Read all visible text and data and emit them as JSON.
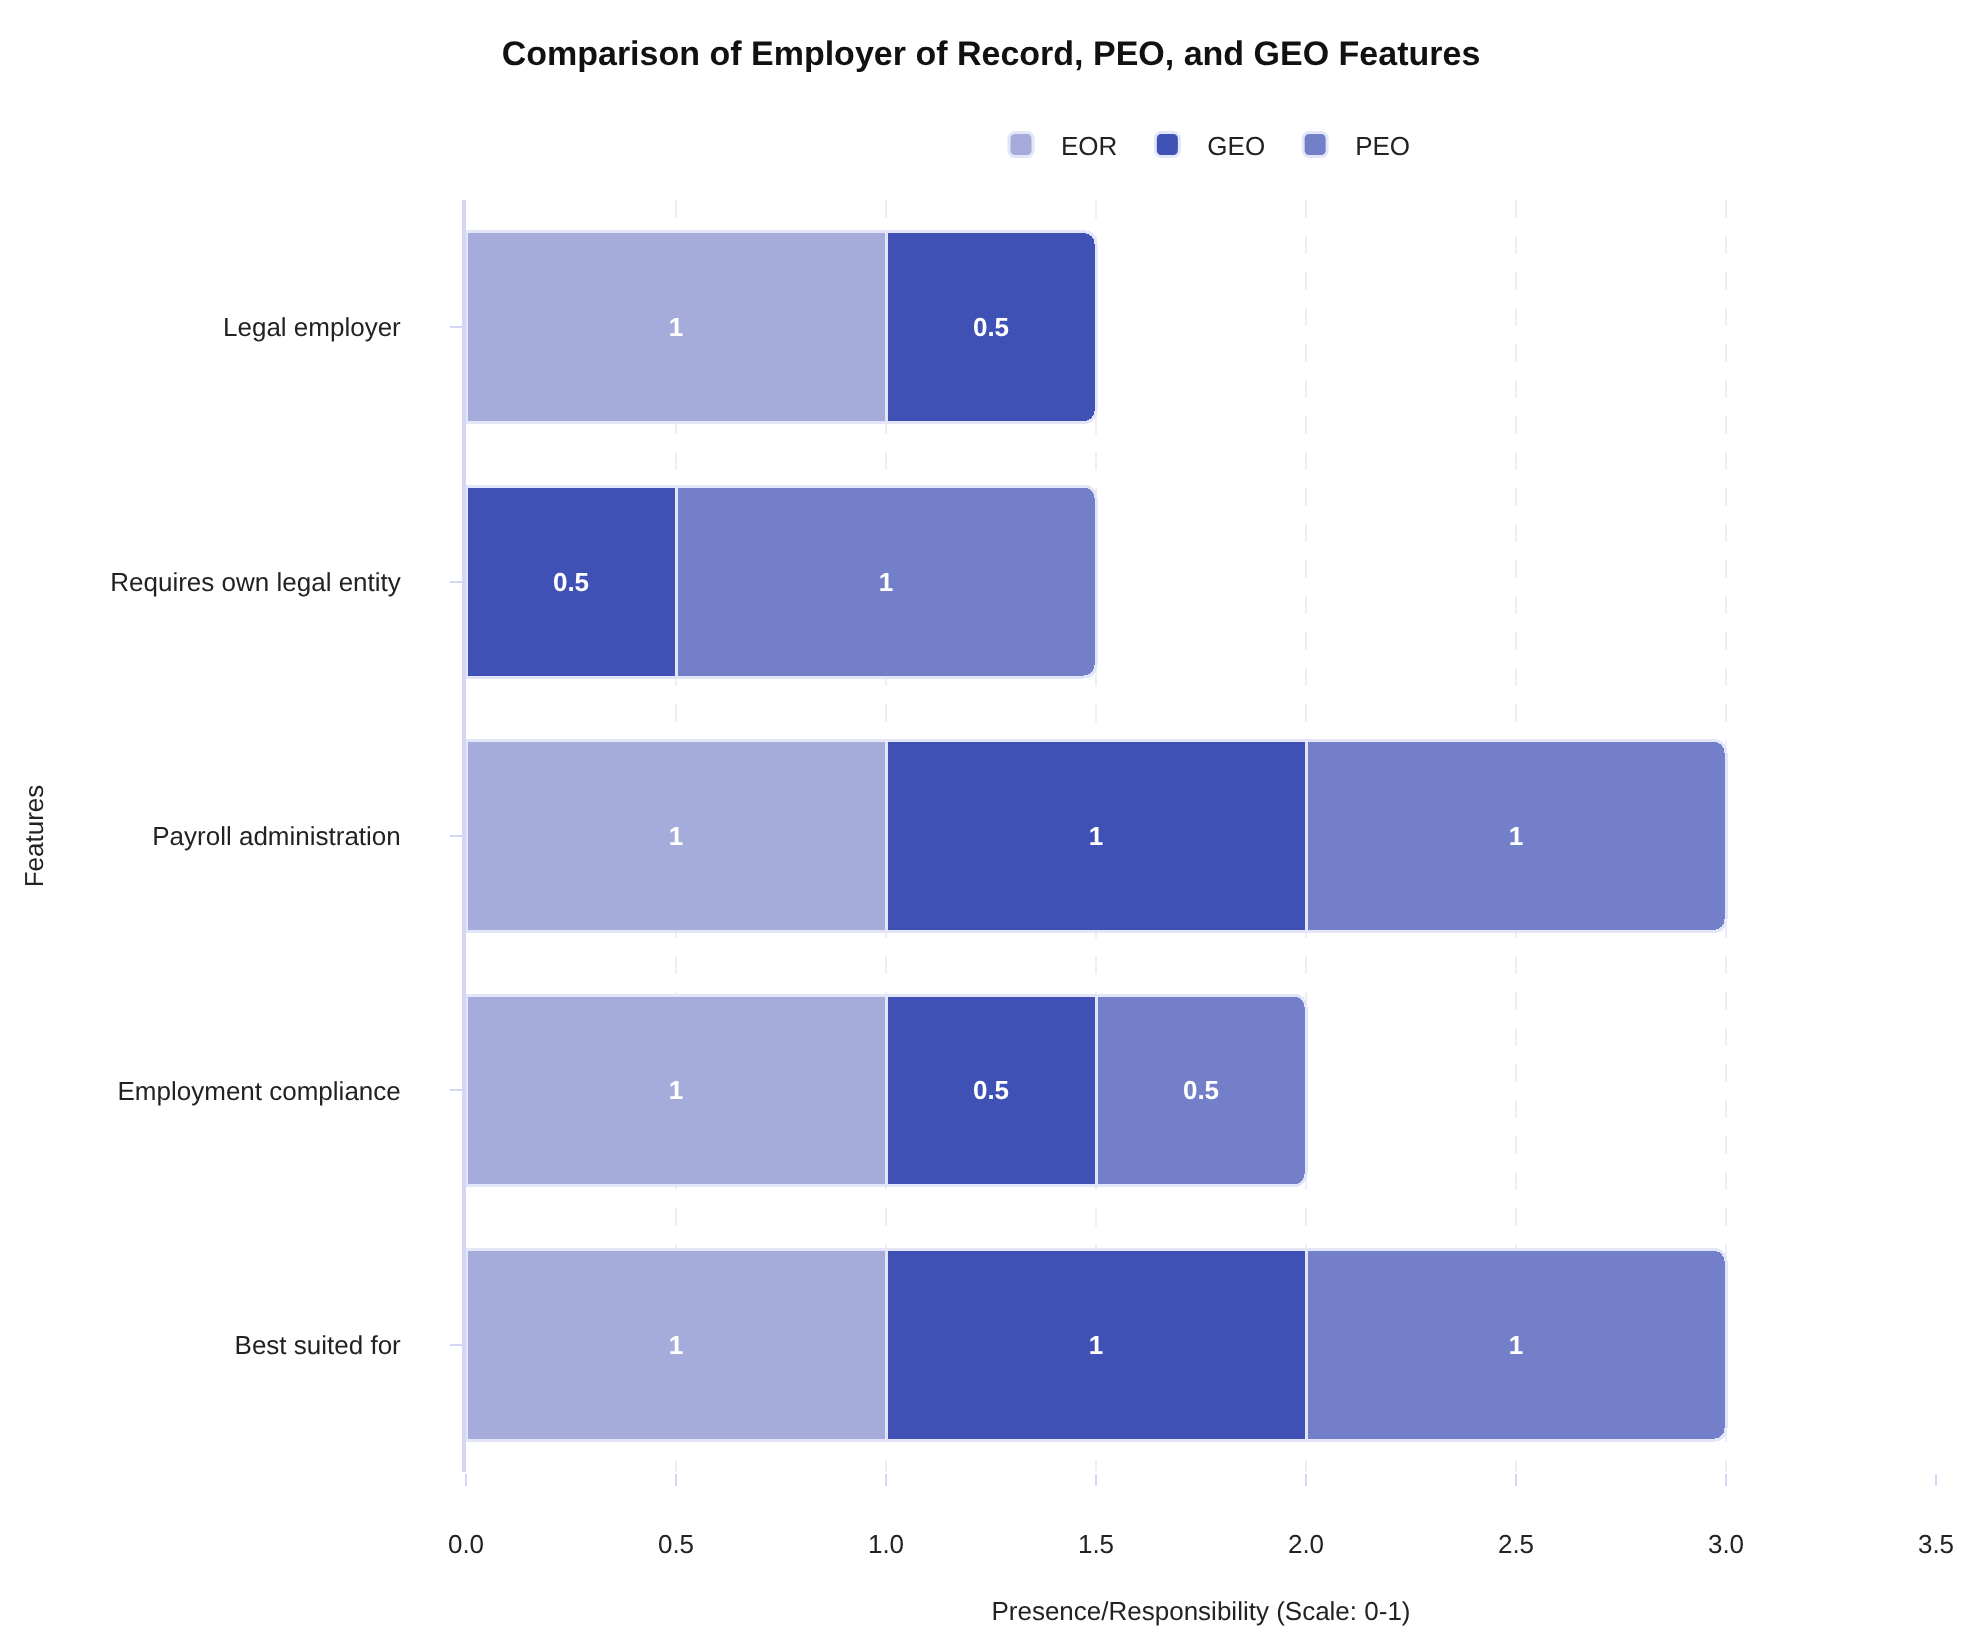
{
  "chart_data": {
    "type": "bar",
    "orientation": "horizontal",
    "stacked": true,
    "title": "Comparison of Employer of Record, PEO, and GEO Features",
    "xlabel": "Presence/Responsibility (Scale: 0-1)",
    "ylabel": "Features",
    "categories": [
      "Legal employer",
      "Requires own legal entity",
      "Payroll administration",
      "Employment compliance",
      "Best suited for"
    ],
    "series": [
      {
        "name": "EOR",
        "color": "#a5acdc",
        "values": [
          1,
          null,
          1,
          1,
          1
        ]
      },
      {
        "name": "GEO",
        "color": "#3f51b5",
        "values": [
          0.5,
          0.5,
          1,
          0.5,
          1
        ]
      },
      {
        "name": "PEO",
        "color": "#737fc9",
        "values": [
          null,
          1,
          1,
          0.5,
          1
        ]
      }
    ],
    "xlim": [
      0,
      3.5
    ],
    "xticks": [
      {
        "value": 0,
        "label": "0.0"
      },
      {
        "value": 0.5,
        "label": "0.5"
      },
      {
        "value": 1,
        "label": "1.0"
      },
      {
        "value": 1.5,
        "label": "1.5"
      },
      {
        "value": 2,
        "label": "2.0"
      },
      {
        "value": 2.5,
        "label": "2.5"
      },
      {
        "value": 3,
        "label": "3.0"
      },
      {
        "value": 3.5,
        "label": "3.5"
      }
    ],
    "grid": "x",
    "legend": "top",
    "data_labels": true
  }
}
